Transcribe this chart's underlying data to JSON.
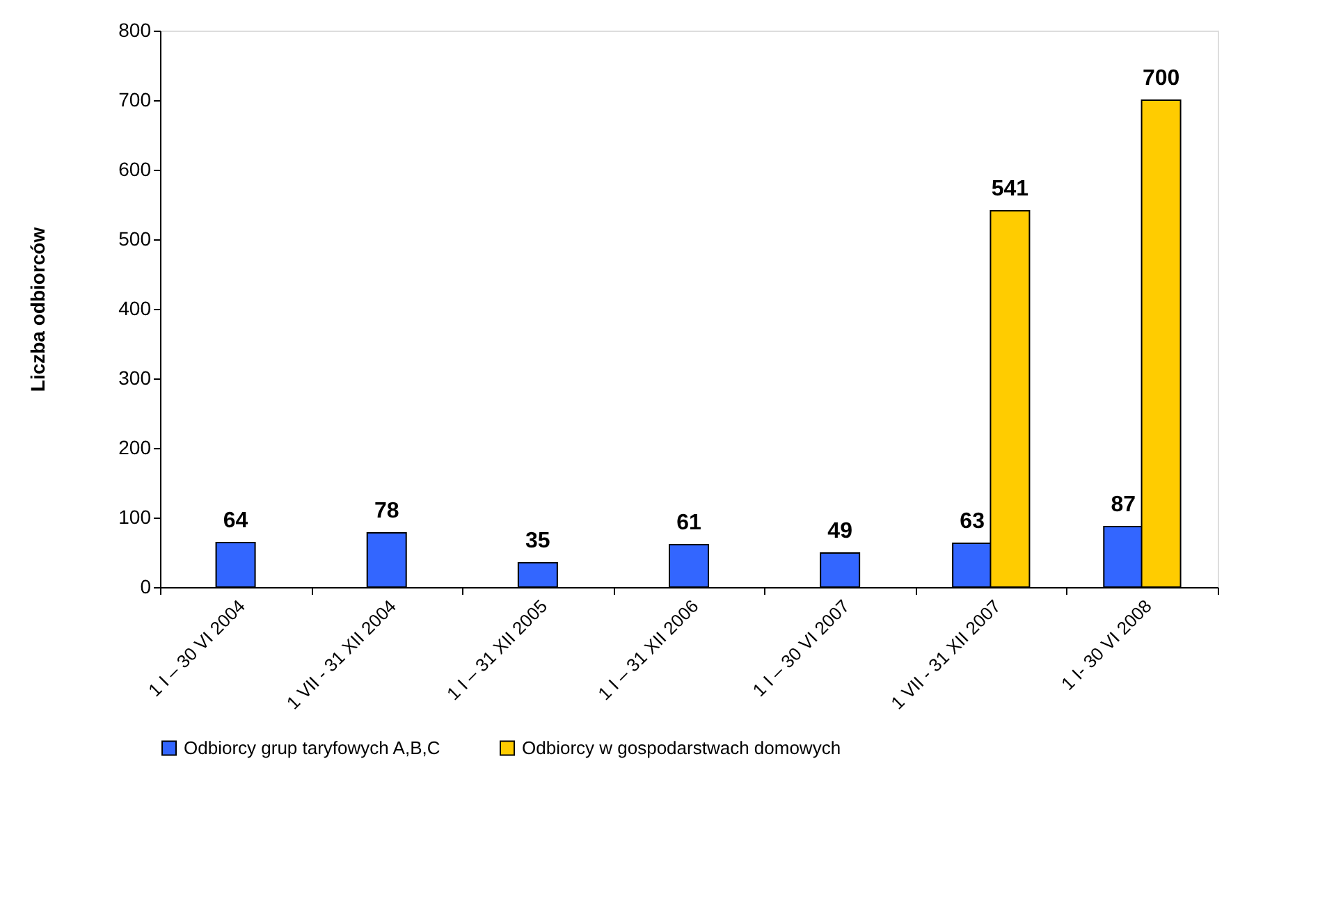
{
  "chart_data": {
    "type": "bar",
    "ylabel": "Liczba odbiorców",
    "categories": [
      "1 I – 30 VI 2004",
      "1 VII - 31 XII 2004",
      "1 I – 31 XII 2005",
      "1 I – 31 XII 2006",
      "1 I – 30 VI 2007",
      "1 VII - 31 XII 2007",
      "1 I- 30 VI 2008"
    ],
    "series": [
      {
        "name": "Odbiorcy grup taryfowych A,B,C",
        "color": "#3366ff",
        "values": [
          64,
          78,
          35,
          61,
          49,
          63,
          87
        ]
      },
      {
        "name": "Odbiorcy w gospodarstwach domowych",
        "color": "#ffcc00",
        "values": [
          null,
          null,
          null,
          null,
          null,
          541,
          700
        ]
      }
    ],
    "ylim": [
      0,
      800
    ],
    "yticks": [
      0,
      100,
      200,
      300,
      400,
      500,
      600,
      700,
      800
    ],
    "data_labels": true,
    "grid": false,
    "legend": "bottom"
  }
}
